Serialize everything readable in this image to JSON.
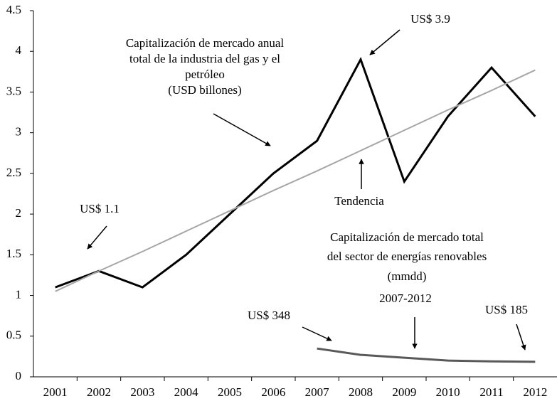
{
  "chart_data": {
    "type": "line",
    "categories": [
      "2001",
      "2002",
      "2003",
      "2004",
      "2005",
      "2006",
      "2007",
      "2008",
      "2009",
      "2010",
      "2011",
      "2012"
    ],
    "series": [
      {
        "color": "#000000",
        "values": [
          1.1,
          1.3,
          1.1,
          1.5,
          2.0,
          2.5,
          2.9,
          3.9,
          2.4,
          3.2,
          3.8,
          3.2
        ]
      },
      {
        "color": "#a6a6a6",
        "values": [
          1.05,
          1.3,
          1.54,
          1.79,
          2.04,
          2.29,
          2.53,
          2.78,
          3.03,
          3.28,
          3.52,
          3.77
        ]
      },
      {
        "color": "#595959",
        "values": [
          null,
          null,
          null,
          null,
          null,
          null,
          0.348,
          0.27,
          0.235,
          0.2,
          0.19,
          0.185
        ]
      }
    ],
    "ylim": [
      0,
      4.5
    ],
    "yticks": [
      0,
      0.5,
      1,
      1.5,
      2,
      2.5,
      3,
      3.5,
      4,
      4.5
    ],
    "grid": false,
    "annotations": {
      "oil_gas": [
        "Capitalización de mercado anual",
        "total de la industria del gas y el",
        "petróleo",
        "(USD billones)"
      ],
      "peak": "US$ 3.9",
      "start": "US$ 1.1",
      "trend": "Tendencia",
      "renewables": [
        "Capitalización de mercado total",
        "del sector de energías renovables",
        "(mmdd)",
        "2007-2012"
      ],
      "ren_start": "US$ 348",
      "ren_end": "US$ 185"
    }
  }
}
